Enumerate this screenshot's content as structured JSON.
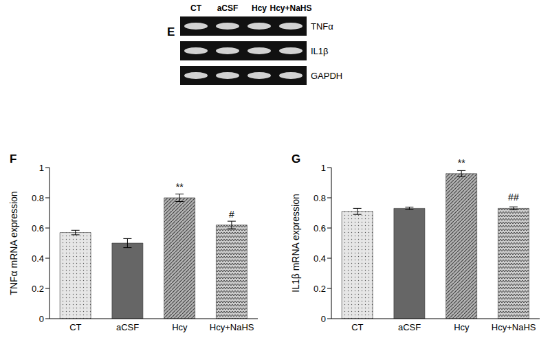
{
  "gel": {
    "panel": "E",
    "lanes": [
      "CT",
      "aCSF",
      "Hcy",
      "Hcy+NaHS"
    ],
    "rows": [
      "TNFα",
      "IL1β",
      "GAPDH"
    ]
  },
  "chart_data": [
    {
      "type": "bar",
      "panel": "F",
      "y_label": "TNFα mRNA expression",
      "categories": [
        "CT",
        "aCSF",
        "Hcy",
        "Hcy+NaHS"
      ],
      "values": [
        0.57,
        0.5,
        0.8,
        0.62
      ],
      "errors": [
        0.015,
        0.03,
        0.025,
        0.025
      ],
      "annotations": [
        null,
        null,
        "**",
        "#"
      ],
      "colors": [
        "#e6e6e6",
        "#666666",
        "#b3b3b3",
        "#cccccc"
      ],
      "ylim": [
        0,
        1
      ],
      "yticks": [
        0,
        0.2,
        0.4,
        0.6,
        0.8,
        1
      ]
    },
    {
      "type": "bar",
      "panel": "G",
      "y_label": "IL1β mRNA expression",
      "categories": [
        "CT",
        "aCSF",
        "Hcy",
        "Hcy+NaHS"
      ],
      "values": [
        0.71,
        0.73,
        0.96,
        0.73
      ],
      "errors": [
        0.02,
        0.008,
        0.02,
        0.01
      ],
      "annotations": [
        null,
        null,
        "**",
        "##"
      ],
      "colors": [
        "#e6e6e6",
        "#666666",
        "#b3b3b3",
        "#cccccc"
      ],
      "ylim": [
        0,
        1
      ],
      "yticks": [
        0,
        0.2,
        0.4,
        0.6,
        0.8,
        1
      ]
    }
  ]
}
